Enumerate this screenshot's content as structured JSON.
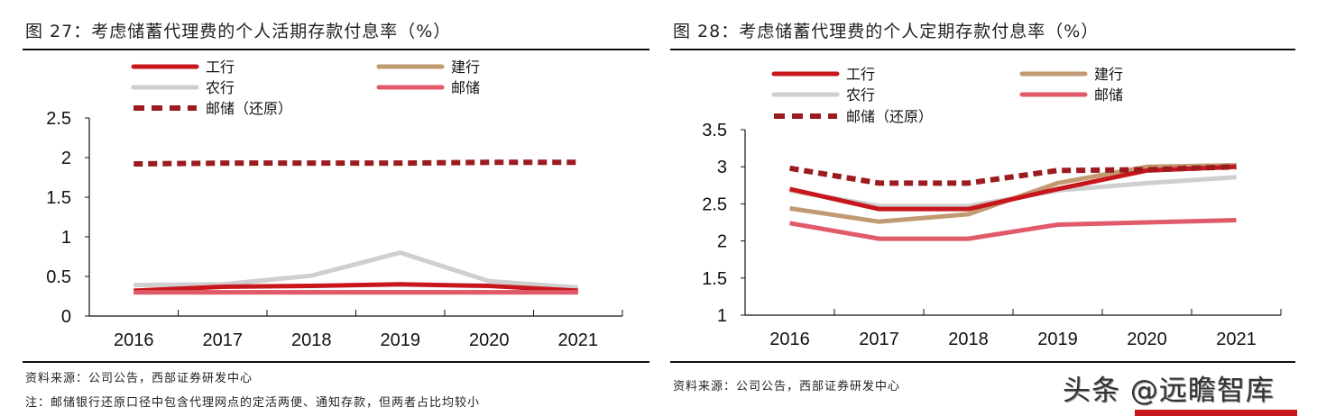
{
  "charts": [
    {
      "title": "图 27：考虑储蓄代理费的个人活期存款付息率（%）",
      "source": "资料来源：公司公告，西部证券研发中心",
      "note": "注：邮储银行还原口径中包含代理网点的定活两便、通知存款，但两者占比均较小"
    },
    {
      "title": "图 28：考虑储蓄代理费的个人定期存款付息率（%）",
      "source": "资料来源：公司公告，西部证券研发中心"
    }
  ],
  "watermark": "头条 @远瞻智库",
  "chart_data": [
    {
      "type": "line",
      "title": "图 27：考虑储蓄代理费的个人活期存款付息率（%）",
      "categories": [
        "2016",
        "2017",
        "2018",
        "2019",
        "2020",
        "2021"
      ],
      "ylim": [
        0,
        2.5
      ],
      "yticks": [
        "0",
        "0.5",
        "1",
        "1.5",
        "2",
        "2.5"
      ],
      "grid": false,
      "legend_placement": "top",
      "series": [
        {
          "name": "工行",
          "color": "#c8161d",
          "dashed": false,
          "values": [
            0.32,
            0.37,
            0.38,
            0.4,
            0.38,
            0.32
          ]
        },
        {
          "name": "建行",
          "color": "#c19a72",
          "dashed": false,
          "values": [
            0.3,
            0.3,
            0.3,
            0.3,
            0.3,
            0.3
          ]
        },
        {
          "name": "农行",
          "color": "#cfcfcf",
          "dashed": false,
          "values": [
            0.39,
            0.4,
            0.51,
            0.8,
            0.44,
            0.36
          ]
        },
        {
          "name": "邮储",
          "color": "#e05a6a",
          "dashed": false,
          "values": [
            0.3,
            0.3,
            0.3,
            0.3,
            0.3,
            0.3
          ]
        },
        {
          "name": "邮储（还原）",
          "color": "#9b1b1f",
          "dashed": true,
          "values": [
            1.92,
            1.93,
            1.93,
            1.93,
            1.94,
            1.94
          ]
        }
      ]
    },
    {
      "type": "line",
      "title": "图 28：考虑储蓄代理费的个人定期存款付息率（%）",
      "categories": [
        "2016",
        "2017",
        "2018",
        "2019",
        "2020",
        "2021"
      ],
      "ylim": [
        1,
        3.5
      ],
      "yticks": [
        "1",
        "1.5",
        "2",
        "2.5",
        "3",
        "3.5"
      ],
      "grid": false,
      "legend_placement": "top",
      "series": [
        {
          "name": "工行",
          "color": "#c8161d",
          "dashed": false,
          "values": [
            2.7,
            2.43,
            2.43,
            2.7,
            2.95,
            3.0
          ]
        },
        {
          "name": "建行",
          "color": "#c19a72",
          "dashed": false,
          "values": [
            2.44,
            2.26,
            2.36,
            2.78,
            3.0,
            3.02
          ]
        },
        {
          "name": "农行",
          "color": "#cfcfcf",
          "dashed": false,
          "values": [
            2.68,
            2.47,
            2.47,
            2.68,
            2.78,
            2.86
          ]
        },
        {
          "name": "邮储",
          "color": "#e05a6a",
          "dashed": false,
          "values": [
            2.24,
            2.03,
            2.03,
            2.22,
            2.25,
            2.28
          ]
        },
        {
          "name": "邮储（还原）",
          "color": "#9b1b1f",
          "dashed": true,
          "values": [
            2.98,
            2.78,
            2.78,
            2.95,
            2.96,
            3.0
          ]
        }
      ]
    }
  ]
}
